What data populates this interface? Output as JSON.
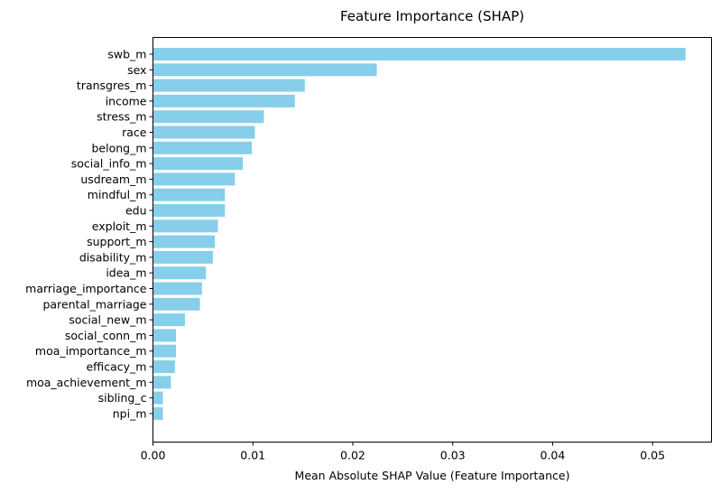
{
  "chart_data": {
    "type": "bar",
    "orientation": "horizontal",
    "title": "Feature Importance (SHAP)",
    "xlabel": "Mean Absolute SHAP Value (Feature Importance)",
    "ylabel": "",
    "xlim": [
      0,
      0.0559
    ],
    "xticks": [
      0.0,
      0.01,
      0.02,
      0.03,
      0.04,
      0.05
    ],
    "xtick_labels": [
      "0.00",
      "0.01",
      "0.02",
      "0.03",
      "0.04",
      "0.05"
    ],
    "grid": false,
    "legend": "none",
    "bar_color": "#87ceeb",
    "categories": [
      "swb_m",
      "sex",
      "transgres_m",
      "income",
      "stress_m",
      "race",
      "belong_m",
      "social_info_m",
      "usdream_m",
      "mindful_m",
      "edu",
      "exploit_m",
      "support_m",
      "disability_m",
      "idea_m",
      "marriage_importance",
      "parental_marriage",
      "social_new_m",
      "social_conn_m",
      "moa_importance_m",
      "efficacy_m",
      "moa_achievement_m",
      "sibling_c",
      "npi_m"
    ],
    "values": [
      0.0533,
      0.0224,
      0.0152,
      0.0142,
      0.0111,
      0.0102,
      0.0099,
      0.009,
      0.0082,
      0.0072,
      0.0072,
      0.0065,
      0.0062,
      0.006,
      0.0053,
      0.0049,
      0.0047,
      0.0032,
      0.0023,
      0.0023,
      0.0022,
      0.0018,
      0.001,
      0.001
    ]
  }
}
